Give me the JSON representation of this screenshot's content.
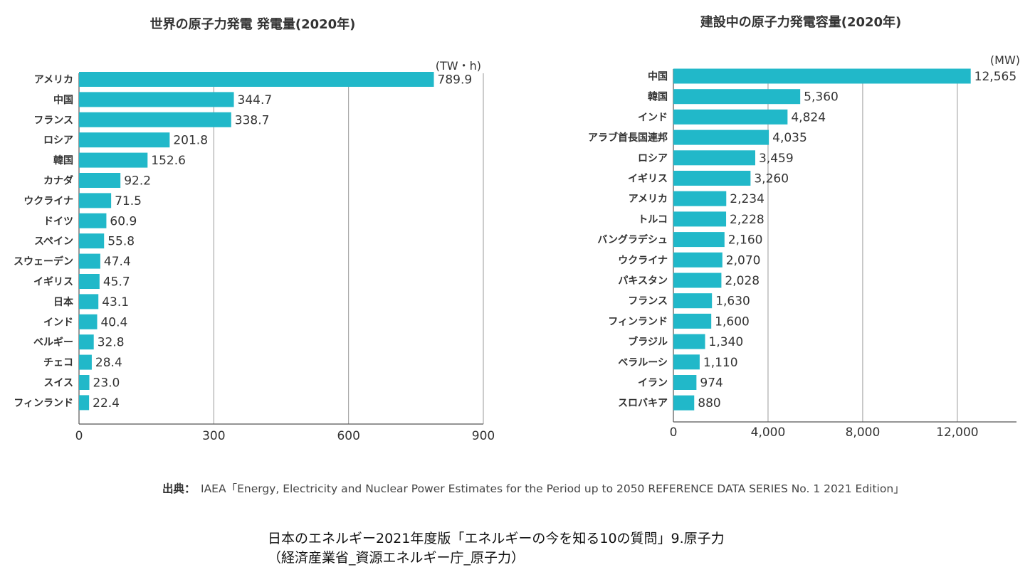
{
  "chart_data": [
    {
      "type": "bar",
      "orientation": "horizontal",
      "title": "世界の原子力発電 発電量(2020年)",
      "unit": "(TW・h)",
      "categories": [
        "アメリカ",
        "中国",
        "フランス",
        "ロシア",
        "韓国",
        "カナダ",
        "ウクライナ",
        "ドイツ",
        "スペイン",
        "スウェーデン",
        "イギリス",
        "日本",
        "インド",
        "ベルギー",
        "チェコ",
        "スイス",
        "フィンランド"
      ],
      "values": [
        789.9,
        344.7,
        338.7,
        201.8,
        152.6,
        92.2,
        71.5,
        60.9,
        55.8,
        47.4,
        45.7,
        43.1,
        40.4,
        32.8,
        28.4,
        23.0,
        22.4
      ],
      "value_labels": [
        "789.9",
        "344.7",
        "338.7",
        "201.8",
        "152.6",
        "92.2",
        "71.5",
        "60.9",
        "55.8",
        "47.4",
        "45.7",
        "43.1",
        "40.4",
        "32.8",
        "28.4",
        "23.0",
        "22.4"
      ],
      "xlim": [
        0,
        900
      ],
      "xticks": [
        0,
        300,
        600,
        900
      ],
      "xtick_labels": [
        "0",
        "300",
        "600",
        "900"
      ],
      "grid": true,
      "bar_color": "#21b8c9"
    },
    {
      "type": "bar",
      "orientation": "horizontal",
      "title": "建設中の原子力発電容量(2020年)",
      "unit": "(MW)",
      "categories": [
        "中国",
        "韓国",
        "インド",
        "アラブ首長国連邦",
        "ロシア",
        "イギリス",
        "アメリカ",
        "トルコ",
        "バングラデシュ",
        "ウクライナ",
        "パキスタン",
        "フランス",
        "フィンランド",
        "ブラジル",
        "ベラルーシ",
        "イラン",
        "スロバキア"
      ],
      "values": [
        12565,
        5360,
        4824,
        4035,
        3459,
        3260,
        2234,
        2228,
        2160,
        2070,
        2028,
        1630,
        1600,
        1340,
        1110,
        974,
        880
      ],
      "value_labels": [
        "12,565",
        "5,360",
        "4,824",
        "4,035",
        "3,459",
        "3,260",
        "2,234",
        "2,228",
        "2,160",
        "2,070",
        "2,028",
        "1,630",
        "1,600",
        "1,340",
        "1,110",
        "974",
        "880"
      ],
      "xlim": [
        0,
        14500
      ],
      "xticks": [
        0,
        4000,
        8000,
        12000
      ],
      "xtick_labels": [
        "0",
        "4,000",
        "8,000",
        "12,000"
      ],
      "grid": true,
      "bar_color": "#21b8c9"
    }
  ],
  "source": {
    "prefix": "出典：",
    "text": "IAEA「Energy, Electricity and Nuclear Power Estimates for the Period up to 2050 REFERENCE DATA SERIES No. 1 2021 Edition」"
  },
  "caption": {
    "line1": "日本のエネルギー2021年度版「エネルギーの今を知る10の質問」9.原子力",
    "line2": "（経済産業省_資源エネルギー庁_原子力）"
  }
}
